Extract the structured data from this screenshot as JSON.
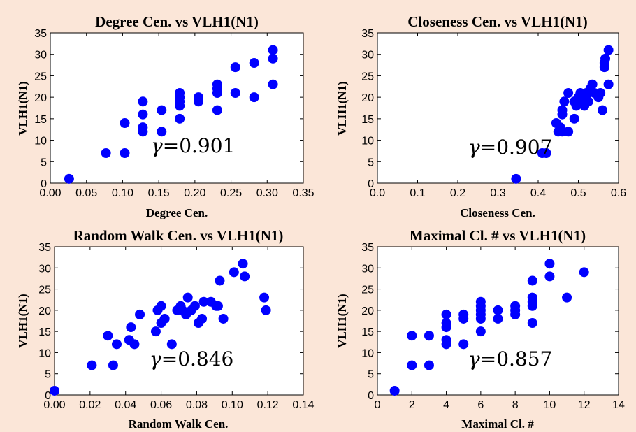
{
  "colors": {
    "background": "#fbe6d8",
    "marker": "#0000ff",
    "frame": "#000000"
  },
  "chart_data": [
    {
      "type": "scatter",
      "title": "Degree Cen. vs VLH1(N1)",
      "xlabel": "Degree Cen.",
      "ylabel": "VLH1(N1)",
      "xlim": [
        0.0,
        0.35
      ],
      "ylim": [
        0,
        35
      ],
      "xticks": [
        "0.00",
        "0.05",
        "0.10",
        "0.15",
        "0.20",
        "0.25",
        "0.30",
        "0.35"
      ],
      "yticks": [
        "0",
        "5",
        "10",
        "15",
        "20",
        "25",
        "30",
        "35"
      ],
      "annotation": {
        "symbol": "γ",
        "value": "=0.901"
      },
      "grid": false,
      "points": [
        [
          0.026,
          1
        ],
        [
          0.077,
          7
        ],
        [
          0.103,
          7
        ],
        [
          0.103,
          14
        ],
        [
          0.128,
          12
        ],
        [
          0.128,
          13
        ],
        [
          0.128,
          16
        ],
        [
          0.128,
          19
        ],
        [
          0.154,
          12
        ],
        [
          0.154,
          17
        ],
        [
          0.179,
          15
        ],
        [
          0.179,
          18
        ],
        [
          0.179,
          19
        ],
        [
          0.179,
          20
        ],
        [
          0.179,
          21
        ],
        [
          0.205,
          19
        ],
        [
          0.205,
          20
        ],
        [
          0.231,
          17
        ],
        [
          0.231,
          21
        ],
        [
          0.231,
          22
        ],
        [
          0.231,
          23
        ],
        [
          0.256,
          21
        ],
        [
          0.256,
          27
        ],
        [
          0.282,
          20
        ],
        [
          0.282,
          28
        ],
        [
          0.308,
          23
        ],
        [
          0.308,
          29
        ],
        [
          0.308,
          31
        ]
      ]
    },
    {
      "type": "scatter",
      "title": "Closeness Cen. vs VLH1(N1)",
      "xlabel": "Closeness Cen.",
      "ylabel": "VLH1(N1)",
      "xlim": [
        0.0,
        0.6
      ],
      "ylim": [
        0,
        35
      ],
      "xticks": [
        "0.0",
        "0.1",
        "0.2",
        "0.3",
        "0.4",
        "0.5",
        "0.6"
      ],
      "yticks": [
        "0",
        "5",
        "10",
        "15",
        "20",
        "25",
        "30",
        "35"
      ],
      "annotation": {
        "symbol": "γ",
        "value": "=0.907"
      },
      "grid": false,
      "points": [
        [
          0.345,
          1
        ],
        [
          0.41,
          7
        ],
        [
          0.42,
          7
        ],
        [
          0.445,
          14
        ],
        [
          0.45,
          12
        ],
        [
          0.455,
          13
        ],
        [
          0.46,
          12
        ],
        [
          0.46,
          16
        ],
        [
          0.46,
          17
        ],
        [
          0.465,
          19
        ],
        [
          0.475,
          12
        ],
        [
          0.475,
          21
        ],
        [
          0.49,
          15
        ],
        [
          0.49,
          19
        ],
        [
          0.495,
          18
        ],
        [
          0.5,
          20
        ],
        [
          0.505,
          21
        ],
        [
          0.51,
          19
        ],
        [
          0.515,
          18
        ],
        [
          0.52,
          20
        ],
        [
          0.52,
          21
        ],
        [
          0.525,
          19
        ],
        [
          0.53,
          22
        ],
        [
          0.535,
          23
        ],
        [
          0.54,
          21
        ],
        [
          0.55,
          20
        ],
        [
          0.555,
          21
        ],
        [
          0.56,
          17
        ],
        [
          0.565,
          27
        ],
        [
          0.565,
          28
        ],
        [
          0.567,
          29
        ],
        [
          0.575,
          23
        ],
        [
          0.575,
          31
        ]
      ]
    },
    {
      "type": "scatter",
      "title": "Random Walk Cen. vs VLH1(N1)",
      "xlabel": "Random Walk Cen.",
      "ylabel": "VLH1(N1)",
      "xlim": [
        0.0,
        0.14
      ],
      "ylim": [
        0,
        35
      ],
      "xticks": [
        "0.00",
        "0.02",
        "0.04",
        "0.06",
        "0.08",
        "0.10",
        "0.12",
        "0.14"
      ],
      "yticks": [
        "0",
        "5",
        "10",
        "15",
        "20",
        "25",
        "30",
        "35"
      ],
      "annotation": {
        "symbol": "γ",
        "value": "=0.846"
      },
      "grid": false,
      "points": [
        [
          0.0,
          1
        ],
        [
          0.021,
          7
        ],
        [
          0.033,
          7
        ],
        [
          0.03,
          14
        ],
        [
          0.035,
          12
        ],
        [
          0.042,
          13
        ],
        [
          0.043,
          16
        ],
        [
          0.045,
          12
        ],
        [
          0.048,
          19
        ],
        [
          0.057,
          15
        ],
        [
          0.058,
          20
        ],
        [
          0.06,
          17
        ],
        [
          0.06,
          21
        ],
        [
          0.062,
          18
        ],
        [
          0.066,
          12
        ],
        [
          0.069,
          20
        ],
        [
          0.071,
          21
        ],
        [
          0.072,
          20
        ],
        [
          0.074,
          19
        ],
        [
          0.075,
          23
        ],
        [
          0.077,
          20
        ],
        [
          0.079,
          21
        ],
        [
          0.081,
          17
        ],
        [
          0.083,
          18
        ],
        [
          0.084,
          22
        ],
        [
          0.088,
          22
        ],
        [
          0.091,
          21
        ],
        [
          0.092,
          21
        ],
        [
          0.093,
          27
        ],
        [
          0.095,
          18
        ],
        [
          0.101,
          29
        ],
        [
          0.106,
          31
        ],
        [
          0.107,
          28
        ],
        [
          0.118,
          23
        ],
        [
          0.119,
          20
        ]
      ]
    },
    {
      "type": "scatter",
      "title": "Maximal Cl. # vs VLH1(N1)",
      "xlabel": "Maximal Cl. #",
      "ylabel": "VLH1(N1)",
      "xlim": [
        0,
        14
      ],
      "ylim": [
        0,
        35
      ],
      "xticks": [
        "0",
        "2",
        "4",
        "6",
        "8",
        "10",
        "12",
        "14"
      ],
      "yticks": [
        "0",
        "5",
        "10",
        "15",
        "20",
        "25",
        "30",
        "35"
      ],
      "annotation": {
        "symbol": "γ",
        "value": "=0.857"
      },
      "grid": false,
      "points": [
        [
          1,
          1
        ],
        [
          2,
          7
        ],
        [
          2,
          14
        ],
        [
          3,
          7
        ],
        [
          3,
          14
        ],
        [
          4,
          12
        ],
        [
          4,
          13
        ],
        [
          4,
          16
        ],
        [
          4,
          17
        ],
        [
          4,
          19
        ],
        [
          5,
          12
        ],
        [
          5,
          18
        ],
        [
          5,
          19
        ],
        [
          6,
          15
        ],
        [
          6,
          18
        ],
        [
          6,
          19
        ],
        [
          6,
          20
        ],
        [
          6,
          21
        ],
        [
          6,
          22
        ],
        [
          7,
          18
        ],
        [
          7,
          20
        ],
        [
          8,
          19
        ],
        [
          8,
          20
        ],
        [
          8,
          21
        ],
        [
          9,
          17
        ],
        [
          9,
          21
        ],
        [
          9,
          22
        ],
        [
          9,
          23
        ],
        [
          9,
          27
        ],
        [
          10,
          28
        ],
        [
          10,
          31
        ],
        [
          11,
          23
        ],
        [
          12,
          29
        ]
      ]
    }
  ]
}
